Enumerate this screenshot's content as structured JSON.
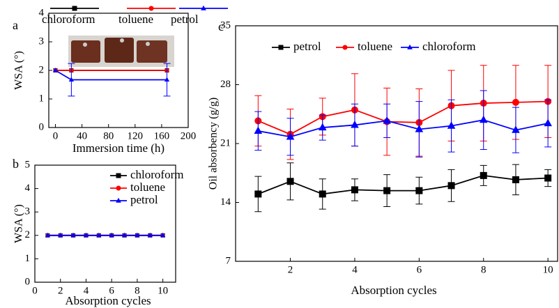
{
  "chart_data": [
    {
      "type": "line",
      "label": "a",
      "xlabel": "Immersion time (h)",
      "ylabel": "WSA (°)",
      "x": [
        0,
        24,
        168
      ],
      "xlim": [
        -10,
        200
      ],
      "ylim": [
        0,
        4
      ],
      "xticks": [
        0,
        40,
        80,
        120,
        160,
        200
      ],
      "yticks": [
        0,
        1,
        2,
        3,
        4
      ],
      "series": [
        {
          "name": "chloroform",
          "color": "#000000",
          "marker": "square",
          "values": [
            2,
            2,
            2
          ]
        },
        {
          "name": "toluene",
          "color": "#ff0000",
          "marker": "circle",
          "values": [
            2,
            2,
            2
          ]
        },
        {
          "name": "petrol",
          "color": "#0000ff",
          "marker": "triangle",
          "values": [
            2,
            1.67,
            1.67
          ],
          "errors": [
            null,
            0.57,
            0.57
          ]
        }
      ]
    },
    {
      "type": "line",
      "label": "b",
      "xlabel": "Absorption cycles",
      "ylabel": "WSA (°)",
      "x": [
        1,
        2,
        3,
        4,
        5,
        6,
        7,
        8,
        9,
        10
      ],
      "xlim": [
        0,
        11
      ],
      "ylim": [
        0,
        5
      ],
      "xticks": [
        0,
        2,
        4,
        6,
        8,
        10
      ],
      "yticks": [
        0,
        1,
        2,
        3,
        4,
        5
      ],
      "series": [
        {
          "name": "chloroform",
          "color": "#000000",
          "marker": "square",
          "values": [
            2,
            2,
            2,
            2,
            2,
            2,
            2,
            2,
            2,
            2
          ]
        },
        {
          "name": "toluene",
          "color": "#ff0000",
          "marker": "circle",
          "values": [
            2,
            2,
            2,
            2,
            2,
            2,
            2,
            2,
            2,
            2
          ]
        },
        {
          "name": "petrol",
          "color": "#0000ff",
          "marker": "triangle",
          "values": [
            2,
            2,
            2,
            2,
            2,
            2,
            2,
            2,
            2,
            2
          ]
        }
      ]
    },
    {
      "type": "line",
      "label": "c",
      "xlabel": "Absorption cycles",
      "ylabel": "Oil absorbency (g/g)",
      "x": [
        1,
        2,
        3,
        4,
        5,
        6,
        7,
        8,
        9,
        10
      ],
      "xlim": [
        0.3,
        10.3
      ],
      "ylim": [
        7,
        35
      ],
      "xticks": [
        2,
        4,
        6,
        8,
        10
      ],
      "yticks": [
        7,
        14,
        21,
        28,
        35
      ],
      "series": [
        {
          "name": "petrol",
          "color": "#000000",
          "marker": "square",
          "values": [
            15.0,
            16.5,
            15.0,
            15.5,
            15.4,
            15.4,
            16.0,
            17.2,
            16.7,
            16.9
          ],
          "errors": [
            2.1,
            2.2,
            1.8,
            1.3,
            1.9,
            1.6,
            1.9,
            1.2,
            1.8,
            1.0
          ]
        },
        {
          "name": "toluene",
          "color": "#ff0000",
          "marker": "circle",
          "values": [
            23.7,
            22.1,
            24.2,
            25.0,
            23.6,
            23.5,
            25.5,
            25.8,
            25.9,
            26.0
          ],
          "errors": [
            3.0,
            3.0,
            2.2,
            4.3,
            4.0,
            4.0,
            4.2,
            4.5,
            4.4,
            4.3
          ]
        },
        {
          "name": "chloroform",
          "color": "#0000ff",
          "marker": "triangle",
          "values": [
            22.5,
            21.8,
            22.9,
            23.2,
            23.7,
            22.7,
            23.1,
            23.8,
            22.6,
            23.4
          ],
          "errors": [
            2.3,
            2.2,
            1.5,
            2.5,
            2.0,
            3.3,
            3.1,
            3.5,
            2.7,
            2.8
          ]
        }
      ]
    }
  ]
}
